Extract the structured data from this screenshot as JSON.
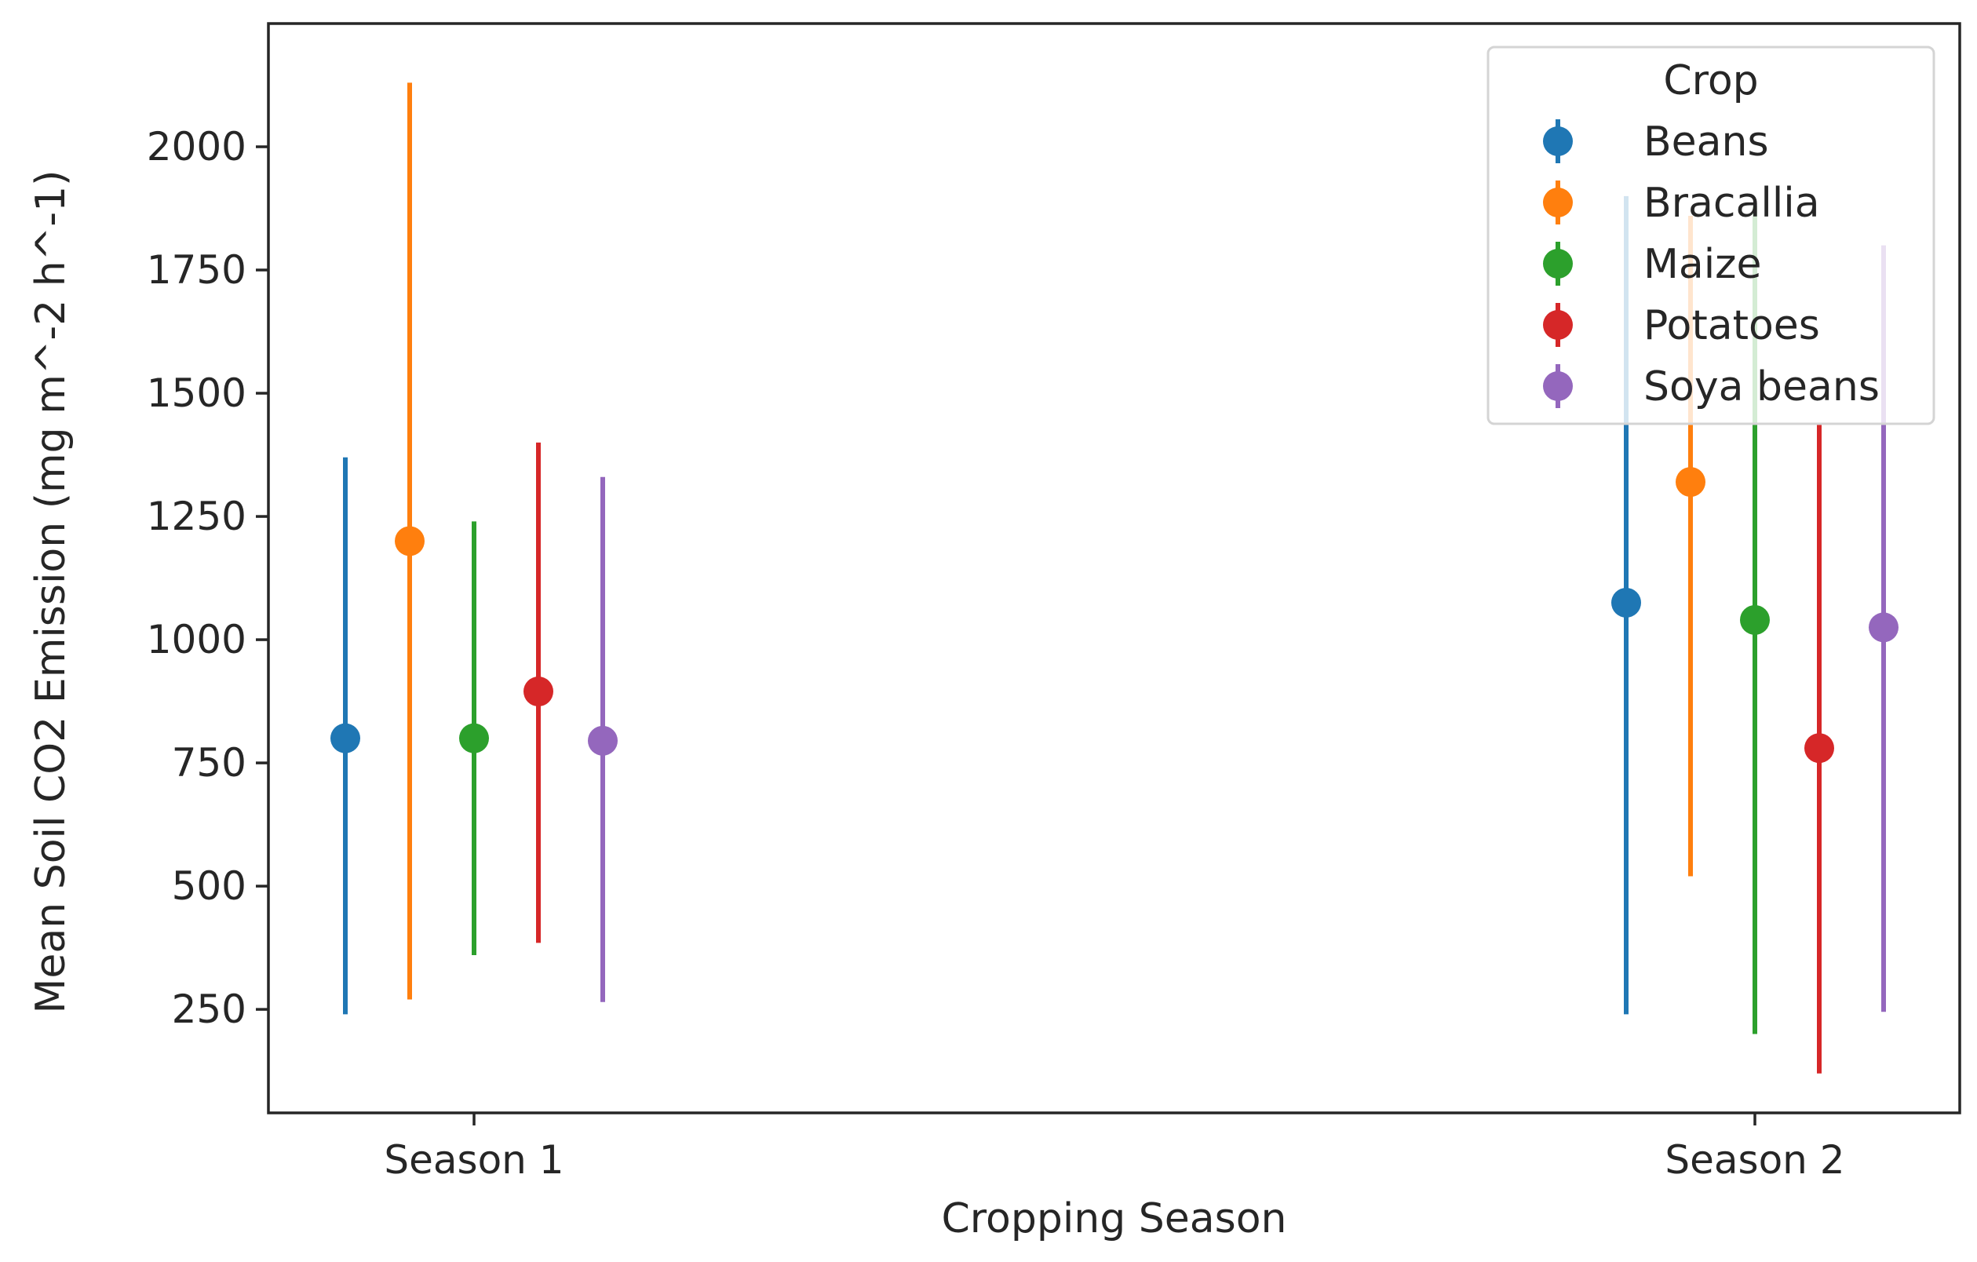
{
  "chart_data": {
    "type": "scatter",
    "xlabel": "Cropping Season",
    "ylabel": "Mean Soil CO2 Emission (mg m^-2 h^-1)",
    "categories": [
      "Season 1",
      "Season 2"
    ],
    "ylim": [
      40,
      2250
    ],
    "yticks": [
      250,
      500,
      750,
      1000,
      1250,
      1500,
      1750,
      2000
    ],
    "grid": false,
    "legend": {
      "title": "Crop",
      "placement": "top-right"
    },
    "series": [
      {
        "name": "Beans",
        "color": "#1f77b4",
        "values": [
          800,
          1075
        ],
        "lower": [
          240,
          240
        ],
        "upper": [
          1370,
          1900
        ]
      },
      {
        "name": "Bracallia",
        "color": "#ff7f0e",
        "values": [
          1200,
          1320
        ],
        "lower": [
          270,
          520
        ],
        "upper": [
          2130,
          1860
        ]
      },
      {
        "name": "Maize",
        "color": "#2ca02c",
        "values": [
          800,
          1040
        ],
        "lower": [
          360,
          200
        ],
        "upper": [
          1240,
          1880
        ]
      },
      {
        "name": "Potatoes",
        "color": "#d62728",
        "values": [
          895,
          780
        ],
        "lower": [
          385,
          120
        ],
        "upper": [
          1400,
          1440
        ]
      },
      {
        "name": "Soya beans",
        "color": "#9467bd",
        "values": [
          795,
          1025
        ],
        "lower": [
          265,
          245
        ],
        "upper": [
          1330,
          1800
        ]
      }
    ]
  }
}
